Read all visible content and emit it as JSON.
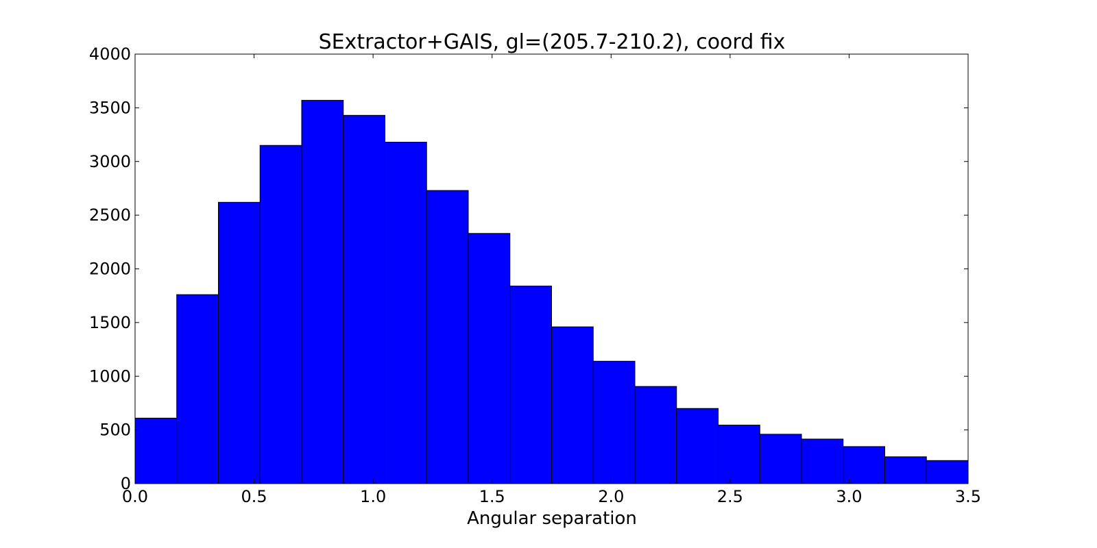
{
  "chart_data": {
    "type": "bar",
    "title": "SExtractor+GAIS, gl=(205.7-210.2), coord fix",
    "xlabel": "Angular separation",
    "ylabel": "",
    "xlim": [
      0.0,
      3.5
    ],
    "ylim": [
      0,
      4000
    ],
    "xticks": [
      "0.0",
      "0.5",
      "1.0",
      "1.5",
      "2.0",
      "2.5",
      "3.0",
      "3.5"
    ],
    "yticks": [
      "0",
      "500",
      "1000",
      "1500",
      "2000",
      "2500",
      "3000",
      "3500",
      "4000"
    ],
    "bin_edges": [
      0.0,
      0.175,
      0.35,
      0.525,
      0.7,
      0.875,
      1.05,
      1.225,
      1.4,
      1.575,
      1.75,
      1.925,
      2.1,
      2.275,
      2.45,
      2.625,
      2.8,
      2.975,
      3.15,
      3.325,
      3.5
    ],
    "values": [
      610,
      1760,
      2620,
      3150,
      3570,
      3430,
      3180,
      2730,
      2330,
      1840,
      1460,
      1140,
      905,
      700,
      545,
      460,
      415,
      345,
      250,
      215
    ],
    "bar_color": "#0000ff",
    "edge_color": "#000000",
    "grid": false,
    "legend": false
  }
}
